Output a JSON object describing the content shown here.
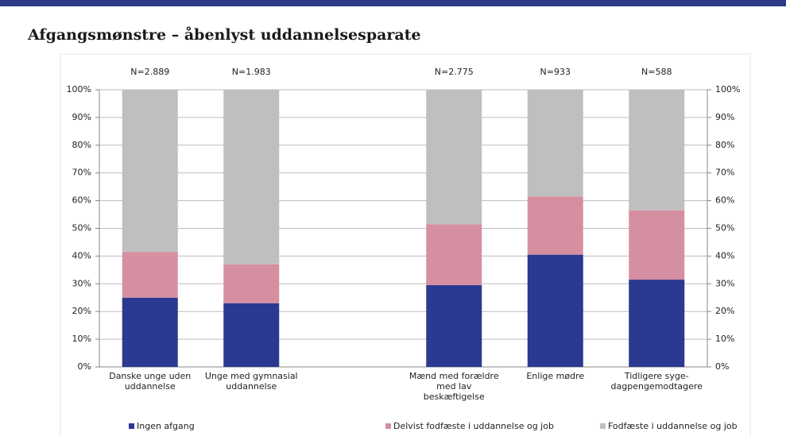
{
  "chart_data": {
    "type": "bar",
    "stacked": true,
    "title": "Afgangsmønstre – åbenlyst uddannelsesparate",
    "categories": [
      "Danske unge uden\nuddannelse",
      "Unge med gymnasial\nuddannelse",
      null,
      "Mænd med forældre\nmed lav\nbeskæftigelse",
      "Enlige mødre",
      "Tidligere syge-\ndagpengemodtagere"
    ],
    "annotations": [
      "N=2.889",
      "N=1.983",
      null,
      "N=2.775",
      "N=933",
      "N=588"
    ],
    "series": [
      {
        "name": "Ingen afgang",
        "color": "#2b3990",
        "values": [
          25,
          23,
          null,
          29.5,
          40.5,
          31.5
        ]
      },
      {
        "name": "Delvist fodfæste i uddannelse og job",
        "color": "#d68fa1",
        "values": [
          16.5,
          14,
          null,
          22,
          21,
          25
        ]
      },
      {
        "name": "Fodfæste i uddannelse og job",
        "color": "#bfbfbf",
        "values": [
          58.5,
          63,
          null,
          48.5,
          38.5,
          43.5
        ]
      }
    ],
    "ylim": [
      0,
      100
    ],
    "yticks": [
      {
        "value": 0,
        "label": "0%"
      },
      {
        "value": 10,
        "label": "10%"
      },
      {
        "value": 20,
        "label": "20%"
      },
      {
        "value": 30,
        "label": "30%"
      },
      {
        "value": 40,
        "label": "40%"
      },
      {
        "value": 50,
        "label": "50%"
      },
      {
        "value": 60,
        "label": "60%"
      },
      {
        "value": 70,
        "label": "70%"
      },
      {
        "value": 80,
        "label": "80%"
      },
      {
        "value": 90,
        "label": "90%"
      },
      {
        "value": 100,
        "label": "100%"
      }
    ],
    "grid": true,
    "right_axis_mirror": true,
    "legend": "bottom"
  }
}
